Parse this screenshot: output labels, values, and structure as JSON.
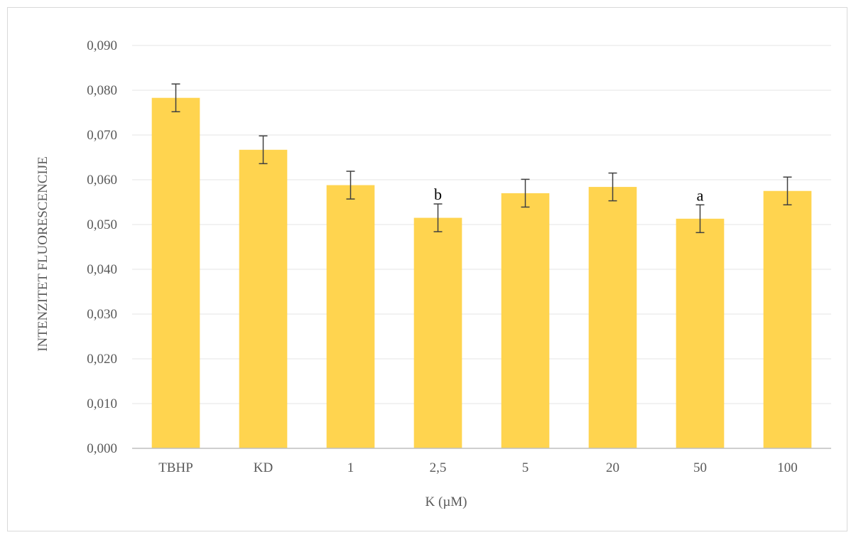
{
  "chart_data": {
    "type": "bar",
    "title": "",
    "xlabel": "K (µM)",
    "ylabel": "INTENZITET FLUORESCENCIJE",
    "ylim": [
      0,
      0.09
    ],
    "yticks": [
      0,
      0.01,
      0.02,
      0.03,
      0.04,
      0.05,
      0.06,
      0.07,
      0.08,
      0.09
    ],
    "ytick_labels": [
      "0,000",
      "0,010",
      "0,020",
      "0,030",
      "0,040",
      "0,050",
      "0,060",
      "0,070",
      "0,080",
      "0,090"
    ],
    "grid": true,
    "legend": "none",
    "categories": [
      "TBHP",
      "KD",
      "1",
      "2,5",
      "5",
      "20",
      "50",
      "100"
    ],
    "values": [
      0.0783,
      0.0667,
      0.0588,
      0.0515,
      0.057,
      0.0584,
      0.0513,
      0.0575
    ],
    "errors": [
      0.0031,
      0.0031,
      0.0031,
      0.0031,
      0.0031,
      0.0031,
      0.0031,
      0.0031
    ],
    "annotations": [
      {
        "category": "2,5",
        "text": "b"
      },
      {
        "category": "50",
        "text": "a"
      }
    ],
    "colors": {
      "bar": "#ffd44f",
      "grid": "#e6e6e6",
      "axis": "#bfbfbf",
      "error": "#404040"
    }
  }
}
